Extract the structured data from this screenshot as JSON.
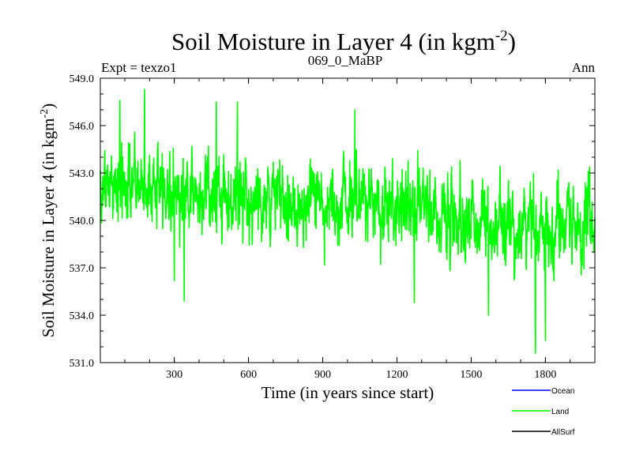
{
  "chart_data": {
    "type": "line",
    "title_main": "Soil Moisture in Layer 4 (in kgm",
    "title_sup": "-2",
    "title_close": ")",
    "subtitle_left": "Expt = texzo1",
    "subtitle_center": "069_0_MaBP",
    "subtitle_right": "Ann",
    "xlabel": "Time (in years since start)",
    "ylabel_main": "Soil Moisture in Layer 4 (in kgm",
    "ylabel_sup": "-2",
    "ylabel_close": ")",
    "xlim": [
      1,
      2000
    ],
    "ylim": [
      531.0,
      549.0
    ],
    "xticks": [
      300,
      600,
      900,
      1200,
      1500,
      1800
    ],
    "yticks": [
      "531.0",
      "534.0",
      "537.0",
      "540.0",
      "543.0",
      "546.0",
      "549.0"
    ],
    "legend": [
      {
        "name": "Ocean",
        "color": "#0000ff"
      },
      {
        "name": "Land",
        "color": "#00ff00"
      },
      {
        "name": "AllSurf",
        "color": "#000000"
      }
    ],
    "series": [
      {
        "name": "Land",
        "color": "#00ff00",
        "n_points": 2000,
        "summary": {
          "approx_mean_by_period": [
            {
              "years": [
                1,
                300
              ],
              "mean": 542.2
            },
            {
              "years": [
                300,
                600
              ],
              "mean": 541.7
            },
            {
              "years": [
                600,
                900
              ],
              "mean": 541.2
            },
            {
              "years": [
                900,
                1200
              ],
              "mean": 541.3
            },
            {
              "years": [
                1200,
                1500
              ],
              "mean": 540.6
            },
            {
              "years": [
                1500,
                1800
              ],
              "mean": 539.6
            },
            {
              "years": [
                1800,
                2000
              ],
              "mean": 539.5
            }
          ],
          "max": {
            "x": 180,
            "y": 548.3
          },
          "min": {
            "x": 1760,
            "y": 531.6
          },
          "notable_dips": [
            {
              "x": 300,
              "y": 536.2
            },
            {
              "x": 340,
              "y": 534.9
            },
            {
              "x": 1270,
              "y": 534.8
            },
            {
              "x": 1570,
              "y": 534.0
            },
            {
              "x": 1760,
              "y": 531.6
            },
            {
              "x": 1800,
              "y": 532.4
            }
          ],
          "notable_peaks": [
            {
              "x": 80,
              "y": 547.6
            },
            {
              "x": 180,
              "y": 548.3
            },
            {
              "x": 470,
              "y": 547.5
            },
            {
              "x": 555,
              "y": 547.5
            },
            {
              "x": 1030,
              "y": 547.0
            }
          ]
        }
      }
    ]
  }
}
